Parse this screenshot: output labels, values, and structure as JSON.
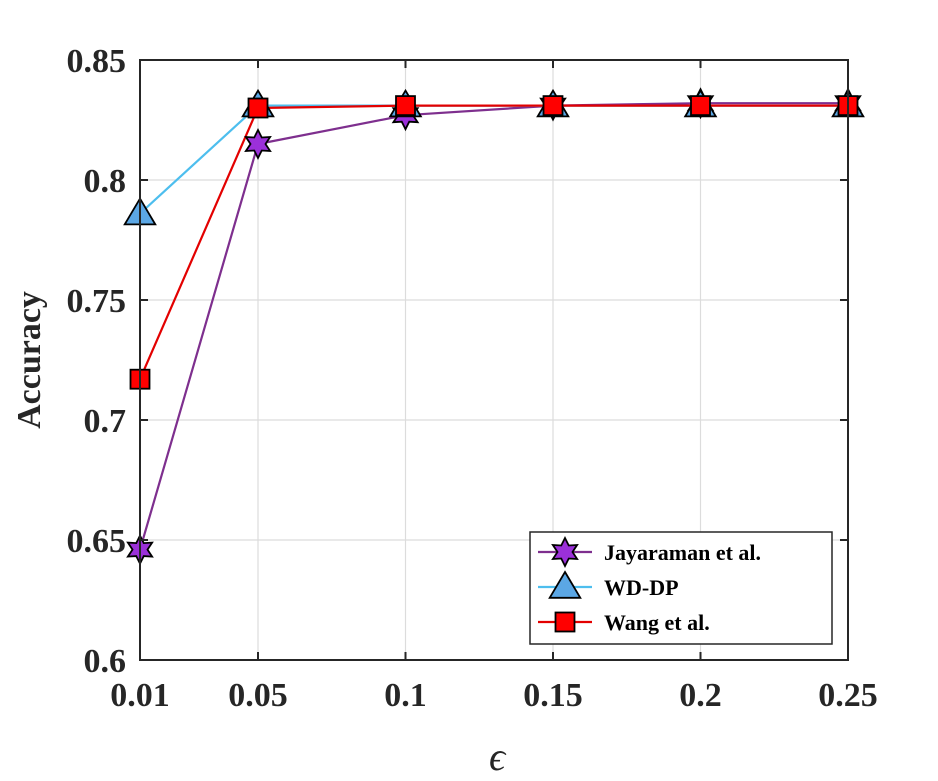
{
  "chart_data": {
    "type": "line",
    "x_ticks": [
      "0.01",
      "0.05",
      "0.1",
      "0.15",
      "0.2",
      "0.25"
    ],
    "y_ticks": [
      "0.6",
      "0.65",
      "0.7",
      "0.75",
      "0.8",
      "0.85"
    ],
    "x_values": [
      0.01,
      0.05,
      0.1,
      0.15,
      0.2,
      0.25
    ],
    "xlim": [
      0.01,
      0.25
    ],
    "ylim": [
      0.6,
      0.85
    ],
    "xlabel": "ϵ",
    "ylabel": "Accuracy",
    "grid": true,
    "legend_position": "bottom-right",
    "series": [
      {
        "name": "Jayaraman et al.",
        "marker": "hexagram",
        "color": "#7E2F8E",
        "fill": "#9B30D9",
        "values": [
          0.646,
          0.815,
          0.827,
          0.831,
          0.832,
          0.832
        ]
      },
      {
        "name": "WD-DP",
        "marker": "triangle",
        "color": "#4DBEEE",
        "fill": "#5BA7E5",
        "values": [
          0.786,
          0.831,
          0.831,
          0.831,
          0.831,
          0.831
        ]
      },
      {
        "name": "Wang et al.",
        "marker": "square",
        "color": "#E30000",
        "fill": "#FF0000",
        "values": [
          0.717,
          0.83,
          0.831,
          0.831,
          0.831,
          0.831
        ]
      }
    ]
  }
}
